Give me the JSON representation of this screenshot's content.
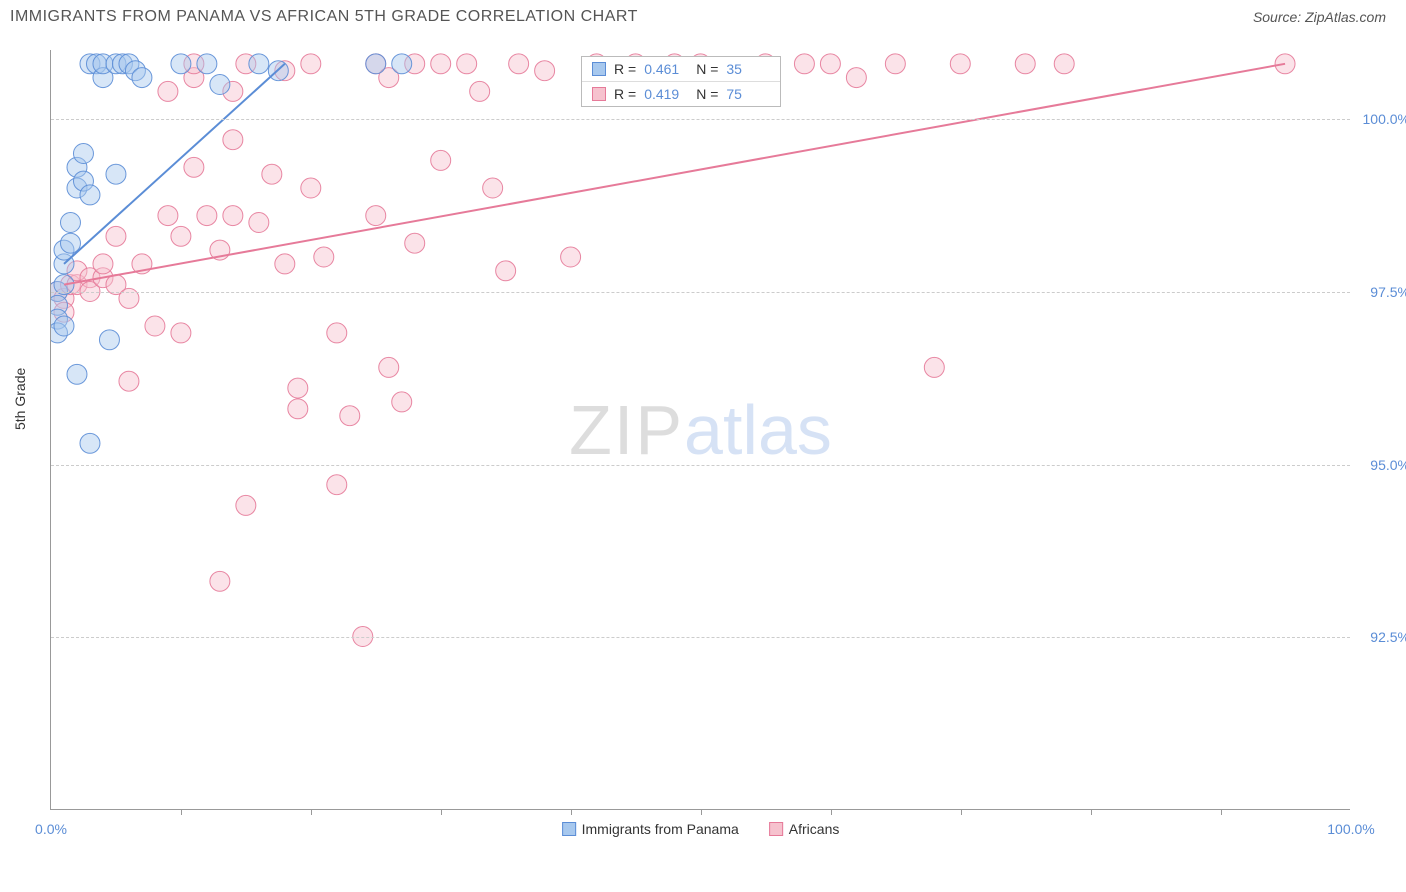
{
  "header": {
    "title": "IMMIGRANTS FROM PANAMA VS AFRICAN 5TH GRADE CORRELATION CHART",
    "source_prefix": "Source: ",
    "source_name": "ZipAtlas.com"
  },
  "chart": {
    "type": "scatter",
    "ylabel": "5th Grade",
    "xlim": [
      0,
      100
    ],
    "ylim": [
      90,
      101
    ],
    "yticks": [
      {
        "v": 92.5,
        "label": "92.5%"
      },
      {
        "v": 95.0,
        "label": "95.0%"
      },
      {
        "v": 97.5,
        "label": "97.5%"
      },
      {
        "v": 100.0,
        "label": "100.0%"
      }
    ],
    "xticks_minor": [
      10,
      20,
      30,
      40,
      50,
      60,
      70,
      80,
      90
    ],
    "xticks": [
      {
        "v": 0,
        "label": "0.0%"
      },
      {
        "v": 100,
        "label": "100.0%"
      }
    ],
    "watermark": {
      "zip": "ZIP",
      "atlas": "atlas"
    },
    "background_color": "#ffffff",
    "grid_color": "#cccccc",
    "axis_color": "#999999",
    "marker_radius": 10,
    "marker_opacity": 0.45,
    "marker_stroke_opacity": 0.9,
    "series": [
      {
        "id": "panama",
        "label": "Immigrants from Panama",
        "color_fill": "#a7c8ee",
        "color_stroke": "#5b8dd6",
        "r": "0.461",
        "n": "35",
        "trend": {
          "x1": 1,
          "y1": 97.9,
          "x2": 18,
          "y2": 100.8,
          "width": 2
        },
        "points": [
          [
            0.5,
            97.5
          ],
          [
            0.5,
            97.3
          ],
          [
            0.5,
            97.1
          ],
          [
            0.5,
            96.9
          ],
          [
            1.0,
            97.6
          ],
          [
            1.0,
            97.9
          ],
          [
            1.0,
            98.1
          ],
          [
            1.5,
            98.2
          ],
          [
            1.5,
            98.5
          ],
          [
            2.0,
            99.0
          ],
          [
            2.0,
            99.3
          ],
          [
            2.5,
            99.1
          ],
          [
            2.5,
            99.5
          ],
          [
            3.0,
            98.9
          ],
          [
            3.0,
            100.8
          ],
          [
            3.5,
            100.8
          ],
          [
            4.0,
            100.6
          ],
          [
            4.0,
            100.8
          ],
          [
            5.0,
            99.2
          ],
          [
            5.0,
            100.8
          ],
          [
            5.5,
            100.8
          ],
          [
            6.0,
            100.8
          ],
          [
            6.5,
            100.7
          ],
          [
            7.0,
            100.6
          ],
          [
            2.0,
            96.3
          ],
          [
            3.0,
            95.3
          ],
          [
            4.5,
            96.8
          ],
          [
            10.0,
            100.8
          ],
          [
            12.0,
            100.8
          ],
          [
            13.0,
            100.5
          ],
          [
            16.0,
            100.8
          ],
          [
            17.5,
            100.7
          ],
          [
            25.0,
            100.8
          ],
          [
            27.0,
            100.8
          ],
          [
            1.0,
            97.0
          ]
        ]
      },
      {
        "id": "africans",
        "label": "Africans",
        "color_fill": "#f6c2ce",
        "color_stroke": "#e67a99",
        "r": "0.419",
        "n": "75",
        "trend": {
          "x1": 1,
          "y1": 97.6,
          "x2": 95,
          "y2": 100.8,
          "width": 2
        },
        "points": [
          [
            0.5,
            97.5
          ],
          [
            1,
            97.4
          ],
          [
            1,
            97.2
          ],
          [
            1.5,
            97.6
          ],
          [
            2,
            97.6
          ],
          [
            2,
            97.8
          ],
          [
            3,
            97.7
          ],
          [
            3,
            97.5
          ],
          [
            4,
            97.7
          ],
          [
            4,
            97.9
          ],
          [
            5,
            97.6
          ],
          [
            5,
            98.3
          ],
          [
            6,
            97.4
          ],
          [
            6,
            96.2
          ],
          [
            7,
            97.9
          ],
          [
            8,
            97.0
          ],
          [
            9,
            98.6
          ],
          [
            9,
            100.4
          ],
          [
            10,
            98.3
          ],
          [
            10,
            96.9
          ],
          [
            11,
            99.3
          ],
          [
            11,
            100.6
          ],
          [
            12,
            98.6
          ],
          [
            13,
            98.1
          ],
          [
            13,
            93.3
          ],
          [
            14,
            99.7
          ],
          [
            14,
            98.6
          ],
          [
            15,
            94.4
          ],
          [
            15,
            100.8
          ],
          [
            16,
            98.5
          ],
          [
            17,
            99.2
          ],
          [
            18,
            100.7
          ],
          [
            18,
            97.9
          ],
          [
            19,
            96.1
          ],
          [
            19,
            95.8
          ],
          [
            20,
            99.0
          ],
          [
            20,
            100.8
          ],
          [
            21,
            98.0
          ],
          [
            22,
            96.9
          ],
          [
            22,
            94.7
          ],
          [
            23,
            95.7
          ],
          [
            24,
            92.5
          ],
          [
            25,
            100.8
          ],
          [
            25,
            98.6
          ],
          [
            26,
            100.6
          ],
          [
            26,
            96.4
          ],
          [
            27,
            95.9
          ],
          [
            28,
            98.2
          ],
          [
            28,
            100.8
          ],
          [
            30,
            99.4
          ],
          [
            30,
            100.8
          ],
          [
            32,
            100.8
          ],
          [
            33,
            100.4
          ],
          [
            34,
            99.0
          ],
          [
            35,
            97.8
          ],
          [
            36,
            100.8
          ],
          [
            38,
            100.7
          ],
          [
            40,
            98.0
          ],
          [
            42,
            100.8
          ],
          [
            45,
            100.8
          ],
          [
            48,
            100.8
          ],
          [
            50,
            100.8
          ],
          [
            52,
            100.6
          ],
          [
            55,
            100.8
          ],
          [
            58,
            100.8
          ],
          [
            60,
            100.8
          ],
          [
            62,
            100.6
          ],
          [
            65,
            100.8
          ],
          [
            68,
            96.4
          ],
          [
            70,
            100.8
          ],
          [
            75,
            100.8
          ],
          [
            78,
            100.8
          ],
          [
            95,
            100.8
          ],
          [
            14,
            100.4
          ],
          [
            11,
            100.8
          ]
        ]
      }
    ],
    "rn_legend_labels": {
      "r": "R =",
      "n": "N ="
    }
  }
}
